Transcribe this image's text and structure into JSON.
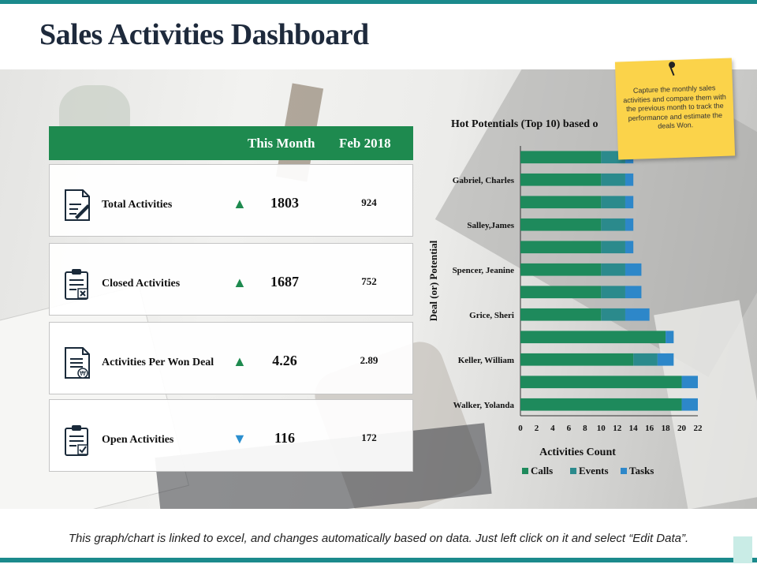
{
  "title": "Sales Activities Dashboard",
  "table": {
    "col_this_month": "This Month",
    "col_prev": "Feb 2018",
    "rows": [
      {
        "label": "Total Activities",
        "this_month": "1803",
        "prev": "924",
        "trend": "up",
        "arrow": "▲",
        "icon": "document-pen-icon"
      },
      {
        "label": "Closed Activities",
        "this_month": "1687",
        "prev": "752",
        "trend": "up",
        "arrow": "▲",
        "icon": "clipboard-x-icon"
      },
      {
        "label": "Activities Per Won Deal",
        "this_month": "4.26",
        "prev": "2.89",
        "trend": "up",
        "arrow": "▲",
        "icon": "document-money-icon"
      },
      {
        "label": "Open Activities",
        "this_month": "116",
        "prev": "172",
        "trend": "down",
        "arrow": "▼",
        "icon": "clipboard-check-icon"
      }
    ]
  },
  "colors": {
    "header_green": "#1e8a4f",
    "up": "#1e8a4f",
    "down": "#2b8fcf",
    "calls": "#1e8a5c",
    "events": "#2b8a8c",
    "tasks": "#2d87c9"
  },
  "sticky_note": {
    "text": "Capture the monthly sales activities and compare them with the previous month to track the performance and estimate the deals Won."
  },
  "chart_data": {
    "type": "bar",
    "orientation": "horizontal",
    "stacked": true,
    "title": "Hot Potentials (Top 10) based o",
    "xlabel": "Activities Count",
    "ylabel": "Deal (or) Potential",
    "xlim": [
      0,
      22
    ],
    "xticks": [
      "0",
      "2",
      "4",
      "6",
      "8",
      "10",
      "12",
      "14",
      "16",
      "18",
      "20",
      "22"
    ],
    "categories": [
      "Walker, Yolanda",
      "",
      "Keller, William",
      "",
      "Grice, Sheri",
      "",
      "Spencer, Jeanine",
      "",
      "Salley,James",
      "",
      "Gabriel, Charles",
      ""
    ],
    "series": [
      {
        "name": "Calls",
        "values": [
          20,
          20,
          14,
          18,
          10,
          10,
          10,
          10,
          10,
          10,
          10,
          10
        ]
      },
      {
        "name": "Events",
        "values": [
          0,
          0,
          3,
          0,
          3,
          3,
          3,
          3,
          3,
          3,
          3,
          3
        ]
      },
      {
        "name": "Tasks",
        "values": [
          2,
          2,
          2,
          1,
          3,
          2,
          2,
          1,
          1,
          1,
          1,
          1
        ]
      }
    ],
    "legend": [
      "Calls",
      "Events",
      "Tasks"
    ],
    "legend_position": "bottom"
  },
  "footer": "This graph/chart is linked to excel, and changes automatically based on data. Just left click on it and select “Edit Data”."
}
